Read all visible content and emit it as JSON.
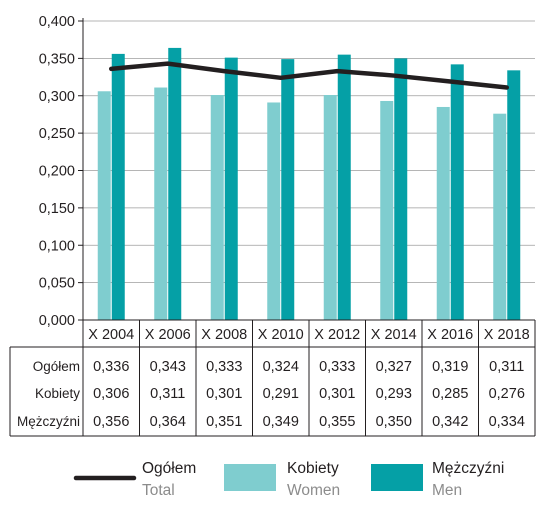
{
  "chart_data": {
    "type": "bar",
    "categories": [
      "X 2004",
      "X 2006",
      "X 2008",
      "X 2010",
      "X 2012",
      "X 2014",
      "X 2016",
      "X 2018"
    ],
    "y_ticks": [
      "0,000",
      "0,050",
      "0,100",
      "0,150",
      "0,200",
      "0,250",
      "0,300",
      "0,350",
      "0,400"
    ],
    "ylim": [
      0,
      0.4
    ],
    "grid": true,
    "series": [
      {
        "name": "Ogółem",
        "name_en": "Total",
        "kind": "line",
        "color": "#231f20",
        "values": [
          0.336,
          0.343,
          0.333,
          0.324,
          0.333,
          0.327,
          0.319,
          0.311
        ],
        "labels": [
          "0,336",
          "0,343",
          "0,333",
          "0,324",
          "0,333",
          "0,327",
          "0,319",
          "0,311"
        ]
      },
      {
        "name": "Kobiety",
        "name_en": "Women",
        "kind": "bar",
        "color": "#7fcdcf",
        "values": [
          0.306,
          0.311,
          0.301,
          0.291,
          0.301,
          0.293,
          0.285,
          0.276
        ],
        "labels": [
          "0,306",
          "0,311",
          "0,301",
          "0,291",
          "0,301",
          "0,293",
          "0,285",
          "0,276"
        ]
      },
      {
        "name": "Mężczyźni",
        "name_en": "Men",
        "kind": "bar",
        "color": "#05a0a6",
        "values": [
          0.356,
          0.364,
          0.351,
          0.349,
          0.355,
          0.35,
          0.342,
          0.334
        ],
        "labels": [
          "0,356",
          "0,364",
          "0,351",
          "0,349",
          "0,355",
          "0,350",
          "0,342",
          "0,334"
        ]
      }
    ],
    "table_row_order": [
      "Ogółem",
      "Kobiety",
      "Mężczyźni"
    ],
    "legend_position": "bottom"
  }
}
